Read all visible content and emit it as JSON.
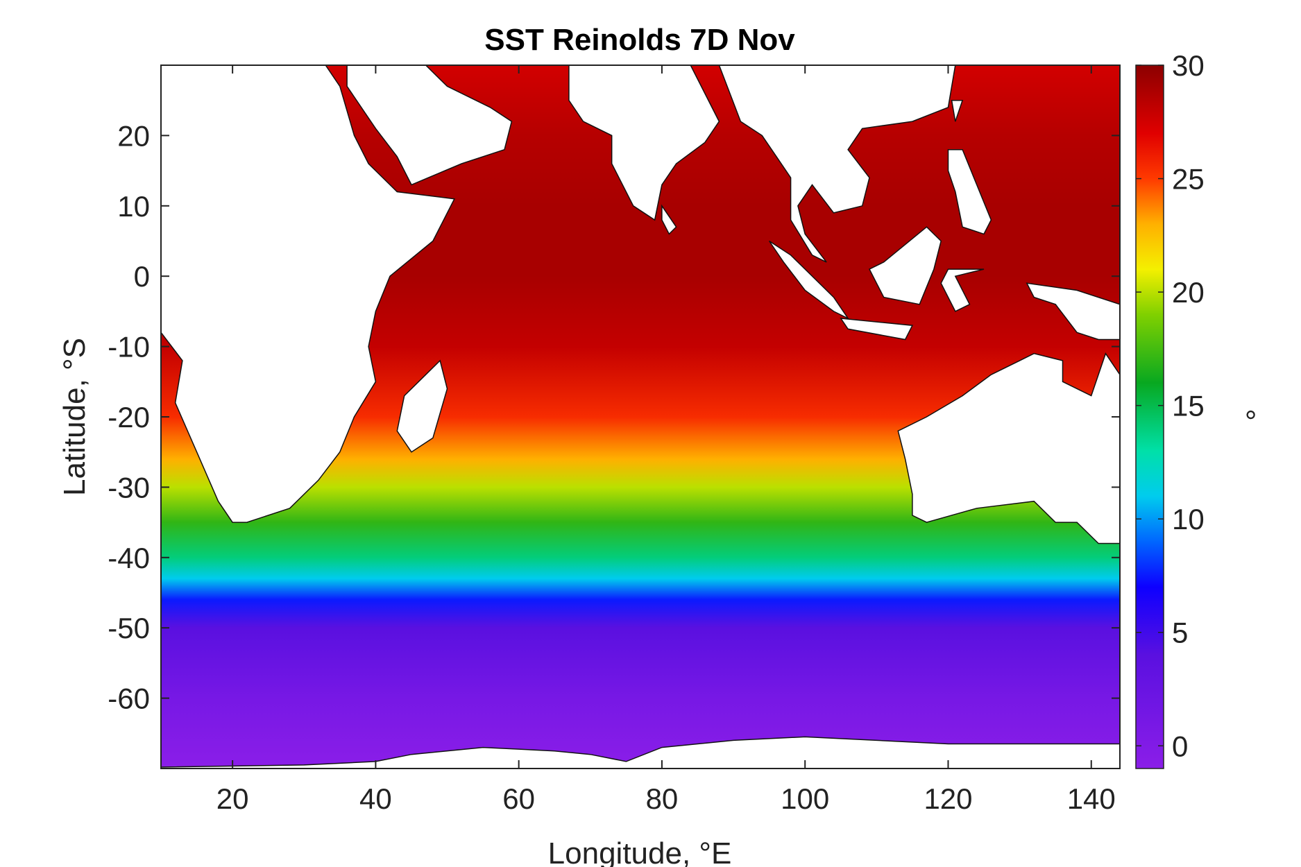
{
  "title": "SST Reinolds 7D Nov",
  "xlabel": "Longitude, °E",
  "ylabel": "Latitude, °S",
  "colorbar_label": "°",
  "chart_data": {
    "type": "heatmap",
    "title": "SST Reinolds 7D Nov",
    "xlabel": "Longitude, °E",
    "ylabel": "Latitude, °S",
    "xlim": [
      10,
      144
    ],
    "ylim": [
      -70,
      30
    ],
    "xticks": [
      20,
      40,
      60,
      80,
      100,
      120,
      140
    ],
    "yticks": [
      20,
      10,
      0,
      -10,
      -20,
      -30,
      -40,
      -50,
      -60
    ],
    "colorbar": {
      "label": "°",
      "range": [
        -1,
        30
      ],
      "ticks": [
        30,
        25,
        20,
        15,
        10,
        5,
        0
      ],
      "colormap": "rainbow (purple → blue → cyan → green → yellow → orange → red → dark red)"
    },
    "colormap_stops": [
      {
        "value": -1,
        "color": "#8b1ee8"
      },
      {
        "value": 4,
        "color": "#5a10e0"
      },
      {
        "value": 7,
        "color": "#0d00ff"
      },
      {
        "value": 9,
        "color": "#0066ff"
      },
      {
        "value": 11,
        "color": "#00ccee"
      },
      {
        "value": 13,
        "color": "#00e0a8"
      },
      {
        "value": 16,
        "color": "#08a820"
      },
      {
        "value": 19,
        "color": "#80d000"
      },
      {
        "value": 21,
        "color": "#f4f000"
      },
      {
        "value": 23,
        "color": "#ffb000"
      },
      {
        "value": 25,
        "color": "#ff3a00"
      },
      {
        "value": 27,
        "color": "#e00000"
      },
      {
        "value": 30,
        "color": "#8c0000"
      }
    ],
    "sst_profile_by_latitude": [
      {
        "lat": 30,
        "sst": 27.5
      },
      {
        "lat": 20,
        "sst": 28.5
      },
      {
        "lat": 10,
        "sst": 29
      },
      {
        "lat": 0,
        "sst": 29
      },
      {
        "lat": -10,
        "sst": 28
      },
      {
        "lat": -20,
        "sst": 25.5
      },
      {
        "lat": -26,
        "sst": 23
      },
      {
        "lat": -30,
        "sst": 20
      },
      {
        "lat": -35,
        "sst": 17
      },
      {
        "lat": -40,
        "sst": 14
      },
      {
        "lat": -43,
        "sst": 11
      },
      {
        "lat": -46,
        "sst": 7.5
      },
      {
        "lat": -50,
        "sst": 4
      },
      {
        "lat": -60,
        "sst": 1
      },
      {
        "lat": -70,
        "sst": -1
      }
    ],
    "land": {
      "africa": [
        [
          10,
          23
        ],
        [
          14,
          30
        ],
        [
          10,
          30
        ]
      ],
      "africa_main": [
        [
          10,
          30
        ],
        [
          33,
          30
        ],
        [
          35,
          27
        ],
        [
          37,
          20
        ],
        [
          39,
          16
        ],
        [
          43,
          12
        ],
        [
          51,
          11
        ],
        [
          48,
          5
        ],
        [
          42,
          0
        ],
        [
          40,
          -5
        ],
        [
          39,
          -10
        ],
        [
          40,
          -15
        ],
        [
          37,
          -20
        ],
        [
          35,
          -25
        ],
        [
          32,
          -29
        ],
        [
          28,
          -33
        ],
        [
          22,
          -35
        ],
        [
          20,
          -35
        ],
        [
          18,
          -32
        ],
        [
          15,
          -25
        ],
        [
          12,
          -18
        ],
        [
          13,
          -12
        ],
        [
          10,
          -8
        ]
      ],
      "arabia": [
        [
          36,
          30
        ],
        [
          43,
          30
        ],
        [
          47,
          30
        ],
        [
          50,
          27
        ],
        [
          56,
          24
        ],
        [
          59,
          22
        ],
        [
          58,
          18
        ],
        [
          52,
          16
        ],
        [
          45,
          13
        ],
        [
          43,
          17
        ],
        [
          40,
          21
        ],
        [
          36,
          27
        ]
      ],
      "india": [
        [
          67,
          30
        ],
        [
          84,
          30
        ],
        [
          88,
          22
        ],
        [
          86,
          19
        ],
        [
          82,
          16
        ],
        [
          80,
          13
        ],
        [
          79,
          8
        ],
        [
          76,
          10
        ],
        [
          73,
          16
        ],
        [
          73,
          20
        ],
        [
          69,
          22
        ],
        [
          67,
          25
        ]
      ],
      "asia_east": [
        [
          88,
          30
        ],
        [
          144,
          30
        ],
        [
          121,
          30
        ],
        [
          120,
          24
        ],
        [
          115,
          22
        ],
        [
          108,
          21
        ],
        [
          106,
          18
        ],
        [
          109,
          14
        ],
        [
          108,
          10
        ],
        [
          104,
          9
        ],
        [
          101,
          13
        ],
        [
          99,
          10
        ],
        [
          100,
          6
        ],
        [
          103,
          2
        ],
        [
          101,
          3
        ],
        [
          98,
          8
        ],
        [
          98,
          14
        ],
        [
          96,
          17
        ],
        [
          94,
          20
        ],
        [
          91,
          22
        ]
      ],
      "madagascar": [
        [
          49,
          -12
        ],
        [
          50,
          -16
        ],
        [
          48,
          -23
        ],
        [
          45,
          -25
        ],
        [
          43,
          -22
        ],
        [
          44,
          -17
        ],
        [
          47,
          -14
        ]
      ],
      "sri_lanka": [
        [
          80,
          10
        ],
        [
          82,
          7
        ],
        [
          81,
          6
        ],
        [
          80,
          8
        ]
      ],
      "sumatra": [
        [
          95,
          5
        ],
        [
          98,
          3
        ],
        [
          104,
          -3
        ],
        [
          106,
          -6
        ],
        [
          104,
          -5
        ],
        [
          100,
          -2
        ],
        [
          97,
          2
        ]
      ],
      "java": [
        [
          105,
          -6
        ],
        [
          115,
          -7
        ],
        [
          114,
          -9
        ],
        [
          106,
          -7.5
        ]
      ],
      "borneo": [
        [
          109,
          1
        ],
        [
          111,
          2
        ],
        [
          117,
          7
        ],
        [
          119,
          5
        ],
        [
          118,
          1
        ],
        [
          116,
          -4
        ],
        [
          111,
          -3
        ],
        [
          110,
          -1
        ]
      ],
      "sulawesi": [
        [
          119,
          -1
        ],
        [
          120,
          1
        ],
        [
          125,
          1
        ],
        [
          121,
          0
        ],
        [
          123,
          -4
        ],
        [
          121,
          -5
        ],
        [
          120,
          -3
        ]
      ],
      "philippines": [
        [
          120,
          18
        ],
        [
          122,
          18
        ],
        [
          124,
          13
        ],
        [
          126,
          8
        ],
        [
          125,
          6
        ],
        [
          122,
          7
        ],
        [
          121,
          12
        ],
        [
          120,
          15
        ]
      ],
      "taiwan": [
        [
          120.5,
          25
        ],
        [
          122,
          25
        ],
        [
          121,
          22
        ]
      ],
      "new_guinea": [
        [
          131,
          -1
        ],
        [
          138,
          -2
        ],
        [
          144,
          -4
        ],
        [
          144,
          -9
        ],
        [
          141,
          -9
        ],
        [
          138,
          -8
        ],
        [
          135,
          -4
        ],
        [
          132,
          -3
        ]
      ],
      "australia": [
        [
          113,
          -22
        ],
        [
          117,
          -20
        ],
        [
          122,
          -17
        ],
        [
          126,
          -14
        ],
        [
          130,
          -12
        ],
        [
          132,
          -11
        ],
        [
          136,
          -12
        ],
        [
          136,
          -15
        ],
        [
          140,
          -17
        ],
        [
          142,
          -11
        ],
        [
          144,
          -14
        ],
        [
          144,
          -38
        ],
        [
          141,
          -38
        ],
        [
          138,
          -35
        ],
        [
          135,
          -35
        ],
        [
          132,
          -32
        ],
        [
          124,
          -33
        ],
        [
          117,
          -35
        ],
        [
          115,
          -34
        ],
        [
          115,
          -31
        ],
        [
          114,
          -26
        ]
      ],
      "antarctica": [
        [
          10,
          -70
        ],
        [
          10,
          -69.8
        ],
        [
          30,
          -69.5
        ],
        [
          40,
          -69
        ],
        [
          45,
          -68
        ],
        [
          55,
          -67
        ],
        [
          65,
          -67.5
        ],
        [
          70,
          -68
        ],
        [
          75,
          -69
        ],
        [
          80,
          -67
        ],
        [
          90,
          -66
        ],
        [
          100,
          -65.5
        ],
        [
          110,
          -66
        ],
        [
          120,
          -66.5
        ],
        [
          130,
          -66.5
        ],
        [
          140,
          -66.5
        ],
        [
          144,
          -66.5
        ],
        [
          144,
          -70
        ]
      ]
    }
  }
}
